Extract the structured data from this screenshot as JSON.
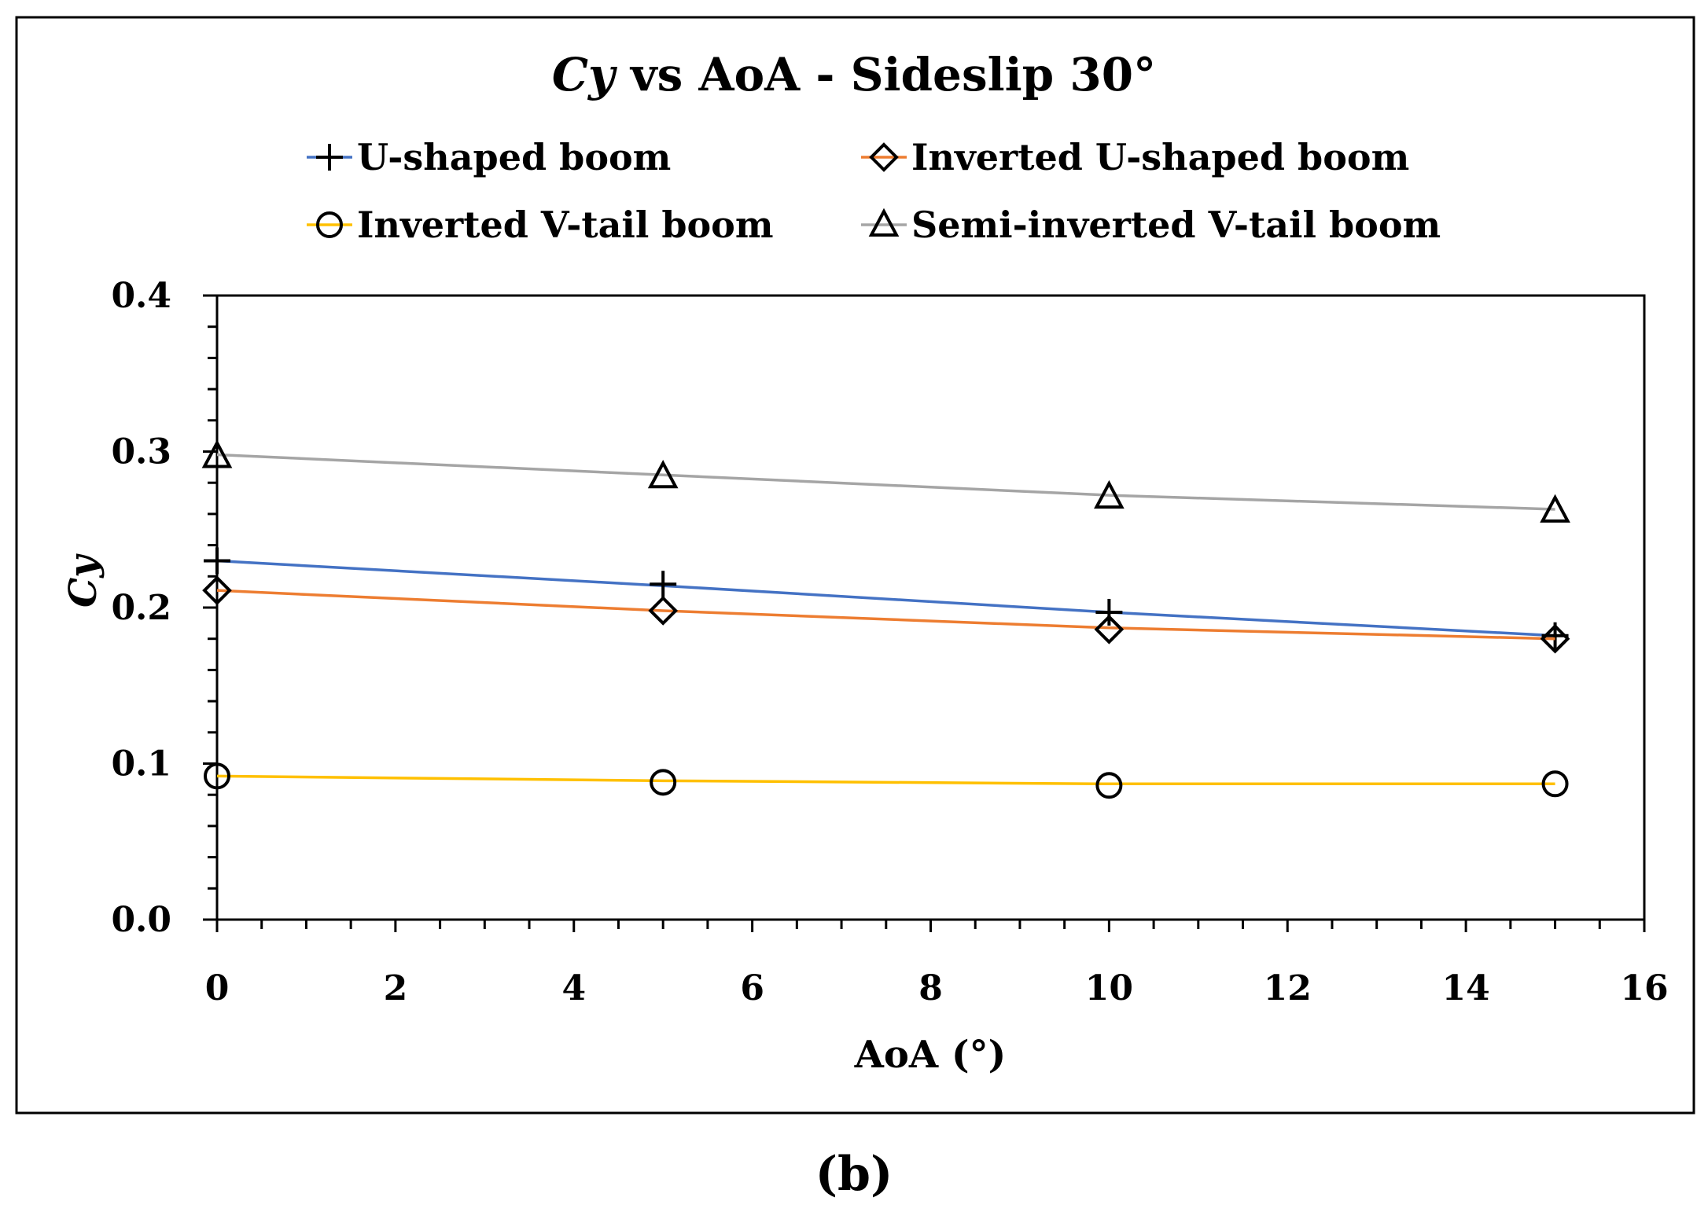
{
  "chart_data": {
    "type": "line",
    "title": {
      "prefix": "Cy",
      "suffix": " vs AoA - Sideslip 30°"
    },
    "xlabel": "AoA (°)",
    "ylabel": "Cy",
    "xlim": [
      0,
      16
    ],
    "ylim": [
      0.0,
      0.4
    ],
    "x_ticks": [
      "0",
      "2",
      "4",
      "6",
      "8",
      "10",
      "12",
      "14",
      "16"
    ],
    "y_ticks": [
      "0.0",
      "0.1",
      "0.2",
      "0.3",
      "0.4"
    ],
    "x_tick_values": [
      0,
      2,
      4,
      6,
      8,
      10,
      12,
      14,
      16
    ],
    "y_tick_values": [
      0.0,
      0.1,
      0.2,
      0.3,
      0.4
    ],
    "x": [
      0,
      5,
      10,
      15
    ],
    "grid": false,
    "legend_position": "top",
    "series": [
      {
        "name": "U-shaped boom",
        "values": [
          0.23,
          0.215,
          0.197,
          0.182
        ],
        "trend": [
          0.23,
          0.214,
          0.197,
          0.182
        ],
        "line_color": "#4472C4",
        "marker": "plus"
      },
      {
        "name": "Inverted U-shaped boom",
        "values": [
          0.211,
          0.198,
          0.186,
          0.18
        ],
        "trend": [
          0.211,
          0.198,
          0.187,
          0.18
        ],
        "line_color": "#ED7D31",
        "marker": "diamond"
      },
      {
        "name": "Inverted V-tail boom",
        "values": [
          0.092,
          0.088,
          0.086,
          0.087
        ],
        "trend": [
          0.092,
          0.089,
          0.087,
          0.087
        ],
        "line_color": "#FFC000",
        "marker": "circle"
      },
      {
        "name": "Semi-inverted V-tail boom",
        "values": [
          0.297,
          0.284,
          0.271,
          0.262
        ],
        "trend": [
          0.298,
          0.285,
          0.272,
          0.263
        ],
        "line_color": "#A5A5A5",
        "marker": "triangle"
      }
    ]
  },
  "caption": "(b)"
}
